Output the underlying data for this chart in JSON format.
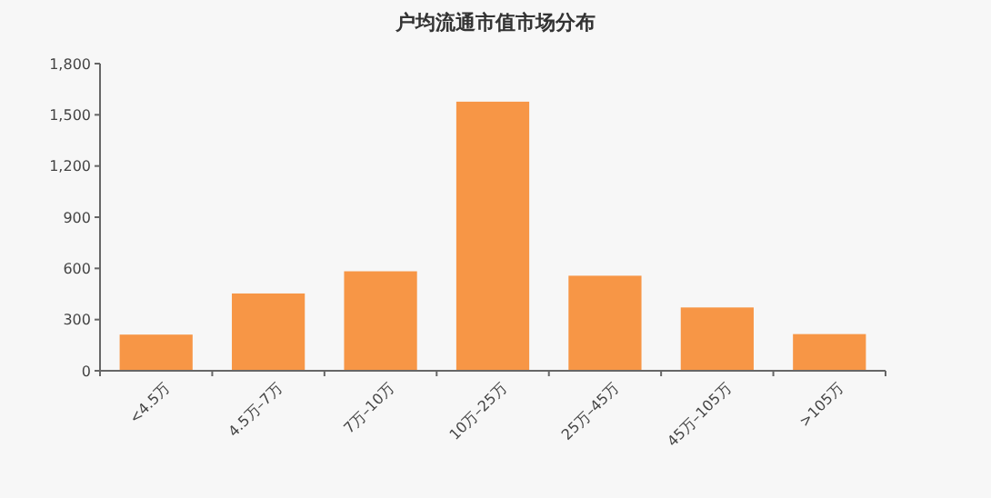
{
  "chart_data": {
    "type": "bar",
    "title": "户均流通市值市场分布",
    "categories": [
      "<4.5万",
      "4.5万–7万",
      "7万–10万",
      "10万–25万",
      "25万–45万",
      "45万–105万",
      ">105万"
    ],
    "values": [
      212,
      453,
      583,
      1577,
      557,
      371,
      215
    ],
    "color": "#f79646",
    "ylim": [
      0,
      1800
    ],
    "yticks": [
      {
        "value": 0,
        "label": "0"
      },
      {
        "value": 300,
        "label": "300"
      },
      {
        "value": 600,
        "label": "600"
      },
      {
        "value": 900,
        "label": "900"
      },
      {
        "value": 1200,
        "label": "1,200"
      },
      {
        "value": 1500,
        "label": "1,500"
      },
      {
        "value": 1800,
        "label": "1,800"
      }
    ],
    "grid": false
  }
}
